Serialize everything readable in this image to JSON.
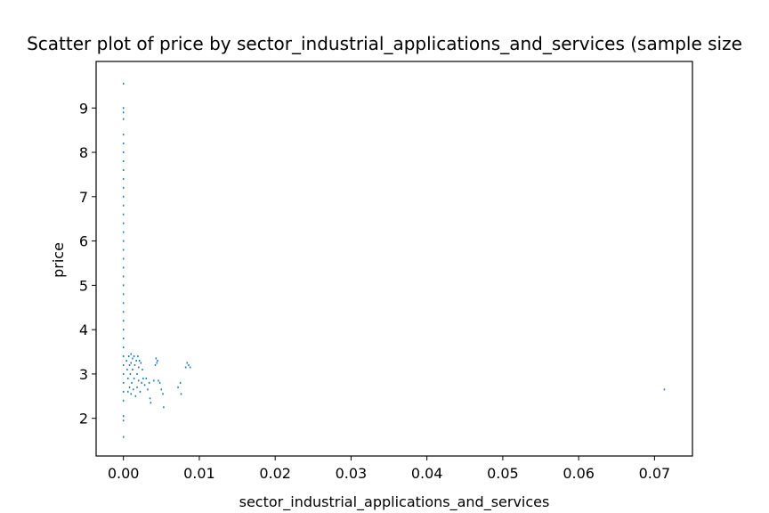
{
  "chart_data": {
    "type": "scatter",
    "title": "Scatter plot of price by sector_industrial_applications_and_services (sample size",
    "xlabel": "sector_industrial_applications_and_services",
    "ylabel": "price",
    "xlim": [
      -0.0036,
      0.075
    ],
    "ylim": [
      1.15,
      10.05
    ],
    "x_ticks": [
      0.0,
      0.01,
      0.02,
      0.03,
      0.04,
      0.05,
      0.06,
      0.07
    ],
    "x_tick_labels": [
      "0.00",
      "0.01",
      "0.02",
      "0.03",
      "0.04",
      "0.05",
      "0.06",
      "0.07"
    ],
    "y_ticks": [
      2,
      3,
      4,
      5,
      6,
      7,
      8,
      9
    ],
    "y_tick_labels": [
      "2",
      "3",
      "4",
      "5",
      "6",
      "7",
      "8",
      "9"
    ],
    "grid": false,
    "marker_color": "#1f77b4",
    "points": [
      {
        "x": 0.0,
        "y": 9.55
      },
      {
        "x": 0.0,
        "y": 9.0
      },
      {
        "x": 0.0,
        "y": 8.9
      },
      {
        "x": 0.0,
        "y": 8.75
      },
      {
        "x": 0.0,
        "y": 8.4
      },
      {
        "x": 0.0,
        "y": 8.2
      },
      {
        "x": 0.0,
        "y": 8.0
      },
      {
        "x": 0.0,
        "y": 7.8
      },
      {
        "x": 0.0,
        "y": 7.6
      },
      {
        "x": 0.0,
        "y": 7.4
      },
      {
        "x": 0.0,
        "y": 7.2
      },
      {
        "x": 0.0,
        "y": 7.0
      },
      {
        "x": 0.0,
        "y": 6.8
      },
      {
        "x": 0.0,
        "y": 6.6
      },
      {
        "x": 0.0,
        "y": 6.4
      },
      {
        "x": 0.0,
        "y": 6.2
      },
      {
        "x": 0.0,
        "y": 6.0
      },
      {
        "x": 0.0,
        "y": 5.8
      },
      {
        "x": 0.0,
        "y": 5.6
      },
      {
        "x": 0.0,
        "y": 5.4
      },
      {
        "x": 0.0,
        "y": 5.2
      },
      {
        "x": 0.0,
        "y": 5.0
      },
      {
        "x": 0.0,
        "y": 4.8
      },
      {
        "x": 0.0,
        "y": 4.6
      },
      {
        "x": 0.0,
        "y": 4.4
      },
      {
        "x": 0.0,
        "y": 4.2
      },
      {
        "x": 0.0,
        "y": 4.0
      },
      {
        "x": 0.0,
        "y": 3.8
      },
      {
        "x": 0.0,
        "y": 3.6
      },
      {
        "x": 0.0,
        "y": 3.4
      },
      {
        "x": 0.0,
        "y": 3.2
      },
      {
        "x": 0.0,
        "y": 3.0
      },
      {
        "x": 0.0,
        "y": 2.8
      },
      {
        "x": 0.0,
        "y": 2.6
      },
      {
        "x": 0.0,
        "y": 2.4
      },
      {
        "x": 0.0,
        "y": 2.05
      },
      {
        "x": 0.0,
        "y": 1.95
      },
      {
        "x": 0.0,
        "y": 1.58
      },
      {
        "x": 0.0004,
        "y": 3.3
      },
      {
        "x": 0.0005,
        "y": 3.1
      },
      {
        "x": 0.0006,
        "y": 2.9
      },
      {
        "x": 0.0006,
        "y": 2.6
      },
      {
        "x": 0.0007,
        "y": 3.4
      },
      {
        "x": 0.0008,
        "y": 3.2
      },
      {
        "x": 0.0008,
        "y": 2.7
      },
      {
        "x": 0.0009,
        "y": 3.0
      },
      {
        "x": 0.001,
        "y": 3.45
      },
      {
        "x": 0.001,
        "y": 3.25
      },
      {
        "x": 0.001,
        "y": 2.55
      },
      {
        "x": 0.0011,
        "y": 2.8
      },
      {
        "x": 0.0012,
        "y": 3.35
      },
      {
        "x": 0.0012,
        "y": 3.1
      },
      {
        "x": 0.0013,
        "y": 2.65
      },
      {
        "x": 0.0014,
        "y": 3.4
      },
      {
        "x": 0.0014,
        "y": 2.9
      },
      {
        "x": 0.0015,
        "y": 3.2
      },
      {
        "x": 0.0016,
        "y": 2.5
      },
      {
        "x": 0.0017,
        "y": 3.3
      },
      {
        "x": 0.0018,
        "y": 3.0
      },
      {
        "x": 0.0018,
        "y": 2.7
      },
      {
        "x": 0.0019,
        "y": 3.4
      },
      {
        "x": 0.002,
        "y": 3.15
      },
      {
        "x": 0.002,
        "y": 2.85
      },
      {
        "x": 0.0021,
        "y": 3.3
      },
      {
        "x": 0.0022,
        "y": 2.6
      },
      {
        "x": 0.0023,
        "y": 3.25
      },
      {
        "x": 0.0024,
        "y": 2.8
      },
      {
        "x": 0.0025,
        "y": 3.1
      },
      {
        "x": 0.0026,
        "y": 2.9
      },
      {
        "x": 0.0028,
        "y": 2.75
      },
      {
        "x": 0.003,
        "y": 2.9
      },
      {
        "x": 0.0032,
        "y": 2.65
      },
      {
        "x": 0.0034,
        "y": 2.8
      },
      {
        "x": 0.0035,
        "y": 2.45
      },
      {
        "x": 0.0036,
        "y": 2.35
      },
      {
        "x": 0.004,
        "y": 2.85
      },
      {
        "x": 0.0042,
        "y": 3.2
      },
      {
        "x": 0.0043,
        "y": 3.35
      },
      {
        "x": 0.0044,
        "y": 3.25
      },
      {
        "x": 0.0045,
        "y": 3.3
      },
      {
        "x": 0.0046,
        "y": 2.85
      },
      {
        "x": 0.0048,
        "y": 2.8
      },
      {
        "x": 0.005,
        "y": 2.65
      },
      {
        "x": 0.0052,
        "y": 2.55
      },
      {
        "x": 0.0053,
        "y": 2.25
      },
      {
        "x": 0.0072,
        "y": 2.7
      },
      {
        "x": 0.0075,
        "y": 2.8
      },
      {
        "x": 0.0076,
        "y": 2.55
      },
      {
        "x": 0.0082,
        "y": 3.15
      },
      {
        "x": 0.0084,
        "y": 3.25
      },
      {
        "x": 0.0086,
        "y": 3.2
      },
      {
        "x": 0.0088,
        "y": 3.15
      },
      {
        "x": 0.0713,
        "y": 2.65
      }
    ]
  }
}
